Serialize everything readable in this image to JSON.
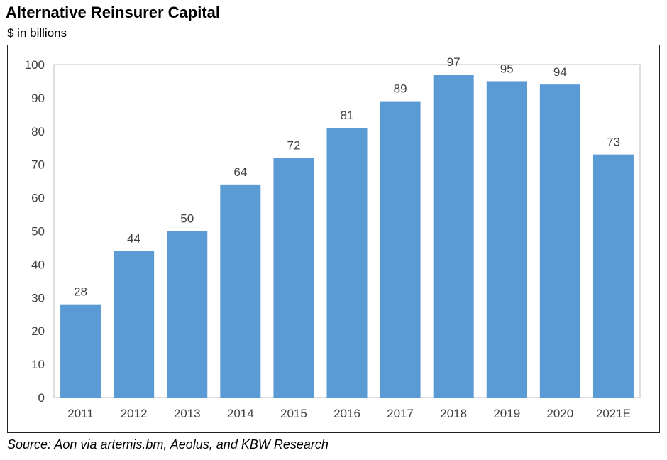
{
  "chart_data": {
    "type": "bar",
    "title": "Alternative Reinsurer Capital",
    "subtitle": "$ in billions",
    "categories": [
      "2011",
      "2012",
      "2013",
      "2014",
      "2015",
      "2016",
      "2017",
      "2018",
      "2019",
      "2020",
      "2021E"
    ],
    "values": [
      28,
      44,
      50,
      64,
      72,
      81,
      89,
      97,
      95,
      94,
      73
    ],
    "data_labels": [
      "28",
      "44",
      "50",
      "64",
      "72",
      "81",
      "89",
      "97",
      "95",
      "94",
      "73"
    ],
    "ylim": [
      0,
      100
    ],
    "yticks": [
      0,
      10,
      20,
      30,
      40,
      50,
      60,
      70,
      80,
      90,
      100
    ],
    "xlabel": "",
    "ylabel": "",
    "bar_color": "#5b9bd5",
    "grid": false,
    "legend": "none",
    "source": "Source: Aon via artemis.bm, Aeolus, and KBW Research"
  }
}
